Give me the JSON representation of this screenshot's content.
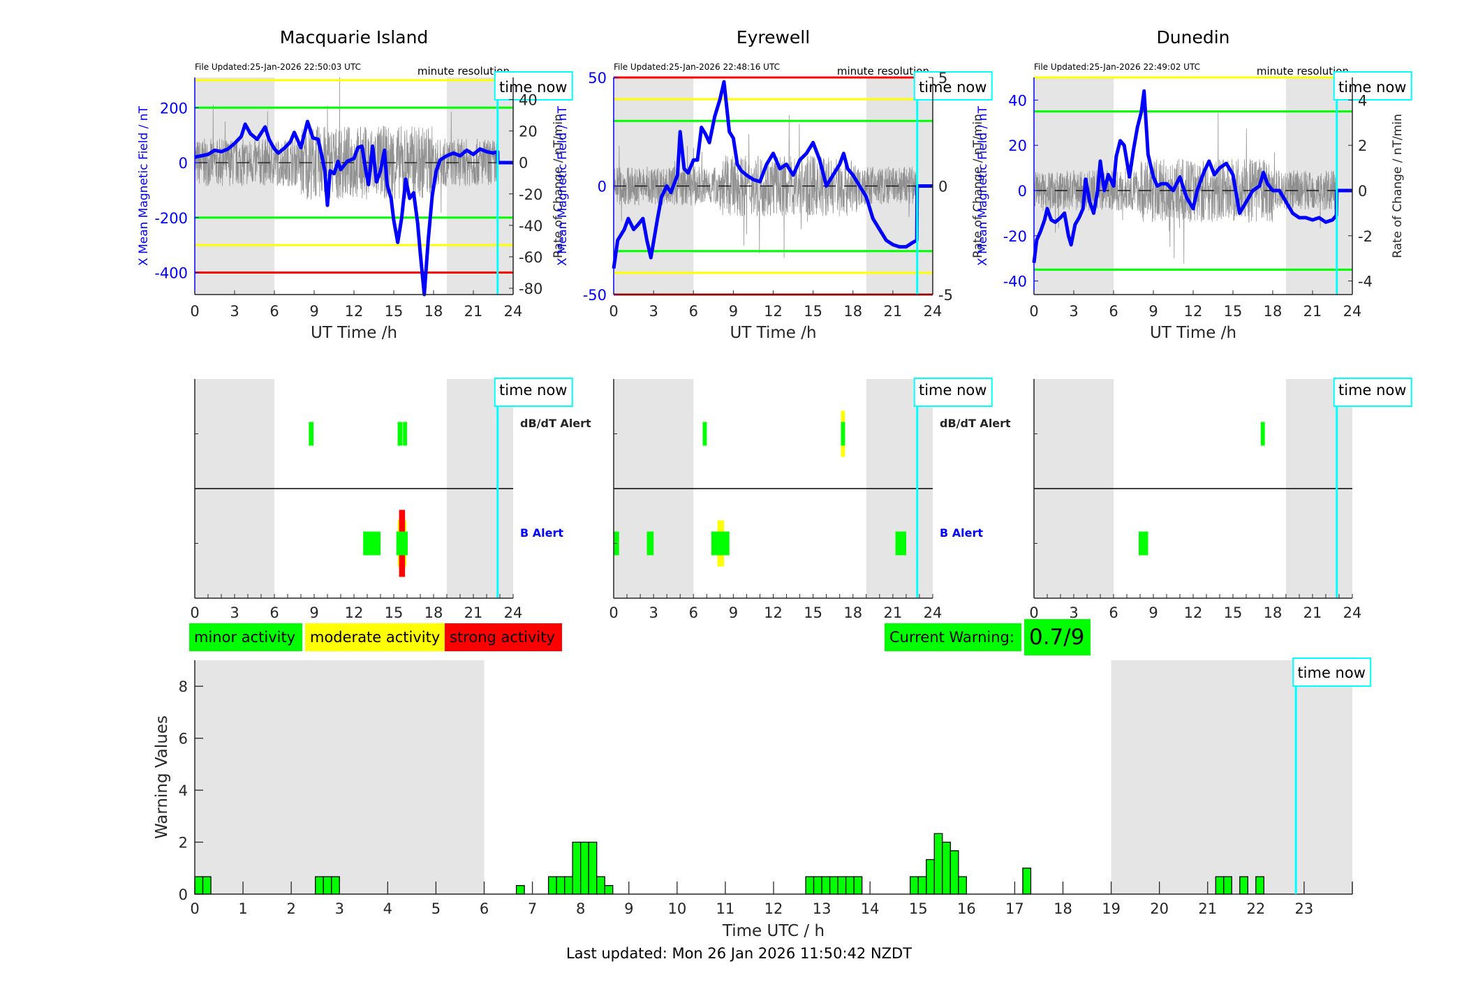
{
  "colors": {
    "field_line": "#0000ff",
    "roc_line": "#808080",
    "green": "#00ff00",
    "yellow": "#ffff00",
    "red": "#ff0000",
    "night_shade": "#e5e5e5",
    "time_now": "#00ffff"
  },
  "time_now_label": "time now",
  "time_now_hour": 22.83,
  "night_shading_hours": [
    [
      0,
      6
    ],
    [
      19,
      24
    ]
  ],
  "stations": [
    {
      "name": "Macquarie Island",
      "file_updated": "File Updated:25-Jan-2026 22:50:03 UTC",
      "resolution": "minute resolution",
      "left_axis_label": "X Mean Magnetic Field / nT",
      "right_axis_label": "Rate of Change / nT/min",
      "xlabel": "UT Time /h",
      "xticks": [
        "0",
        "3",
        "6",
        "9",
        "12",
        "15",
        "18",
        "21",
        "24"
      ],
      "left_ylim": [
        -480,
        310
      ],
      "left_yticks": [
        "200",
        "0",
        "-200",
        "-400"
      ],
      "left_ytick_values": [
        200,
        0,
        -200,
        -400
      ],
      "right_ylim": [
        -84,
        54
      ],
      "right_yticks": [
        "40",
        "20",
        "0",
        "-20",
        "-40",
        "-60",
        "-80"
      ],
      "right_ytick_values": [
        40,
        20,
        0,
        -20,
        -40,
        -60,
        -80
      ],
      "thresholds": [
        {
          "value": 300,
          "color": "yellow"
        },
        {
          "value": 200,
          "color": "green"
        },
        {
          "value": -200,
          "color": "green"
        },
        {
          "value": -300,
          "color": "yellow"
        },
        {
          "value": -400,
          "color": "red"
        }
      ],
      "field_series": [
        [
          0,
          20
        ],
        [
          0.5,
          25
        ],
        [
          1,
          30
        ],
        [
          1.5,
          45
        ],
        [
          2,
          40
        ],
        [
          2.5,
          50
        ],
        [
          3,
          70
        ],
        [
          3.5,
          95
        ],
        [
          3.8,
          140
        ],
        [
          4.2,
          105
        ],
        [
          4.7,
          85
        ],
        [
          5.3,
          130
        ],
        [
          5.6,
          85
        ],
        [
          6,
          50
        ],
        [
          6.3,
          35
        ],
        [
          6.8,
          55
        ],
        [
          7.2,
          75
        ],
        [
          7.5,
          110
        ],
        [
          8,
          55
        ],
        [
          8.5,
          150
        ],
        [
          8.9,
          90
        ],
        [
          9.3,
          85
        ],
        [
          9.6,
          20
        ],
        [
          9.8,
          -30
        ],
        [
          10,
          -155
        ],
        [
          10.2,
          -30
        ],
        [
          10.5,
          -40
        ],
        [
          10.8,
          5
        ],
        [
          11,
          -25
        ],
        [
          11.5,
          5
        ],
        [
          12,
          15
        ],
        [
          12.3,
          55
        ],
        [
          12.6,
          60
        ],
        [
          12.9,
          -30
        ],
        [
          13.1,
          -80
        ],
        [
          13.4,
          60
        ],
        [
          13.7,
          -70
        ],
        [
          14,
          -30
        ],
        [
          14.3,
          45
        ],
        [
          14.5,
          -80
        ],
        [
          14.8,
          -130
        ],
        [
          15,
          -210
        ],
        [
          15.3,
          -290
        ],
        [
          15.6,
          -200
        ],
        [
          15.9,
          -60
        ],
        [
          16.2,
          -130
        ],
        [
          16.5,
          -110
        ],
        [
          16.8,
          -220
        ],
        [
          17,
          -330
        ],
        [
          17.3,
          -480
        ],
        [
          17.6,
          -280
        ],
        [
          17.9,
          -120
        ],
        [
          18.2,
          -30
        ],
        [
          18.5,
          10
        ],
        [
          19,
          25
        ],
        [
          19.5,
          35
        ],
        [
          20,
          25
        ],
        [
          20.5,
          45
        ],
        [
          21,
          30
        ],
        [
          21.5,
          50
        ],
        [
          22,
          40
        ],
        [
          22.5,
          35
        ],
        [
          22.83,
          40
        ],
        [
          22.84,
          0
        ],
        [
          24,
          0
        ]
      ],
      "dbdt_alerts": [
        {
          "start": 8.6,
          "end": 8.95,
          "level": "minor"
        },
        {
          "start": 15.3,
          "end": 15.65,
          "level": "minor"
        },
        {
          "start": 15.7,
          "end": 16.0,
          "level": "minor"
        }
      ],
      "b_alerts": [
        {
          "start": 12.7,
          "end": 14.0,
          "level": "minor"
        },
        {
          "start": 15.2,
          "end": 16.05,
          "level": "minor"
        },
        {
          "start": 15.3,
          "end": 15.95,
          "level": "moderate"
        },
        {
          "start": 15.4,
          "end": 15.85,
          "level": "strong"
        }
      ]
    },
    {
      "name": "Eyrewell",
      "file_updated": "File Updated:25-Jan-2026 22:48:16 UTC",
      "resolution": "minute resolution",
      "left_axis_label": "X Mean Magnetic Field / nT",
      "right_axis_label": "Rate of Change / nT/min",
      "xlabel": "UT Time /h",
      "xticks": [
        "0",
        "3",
        "6",
        "9",
        "12",
        "15",
        "18",
        "21",
        "24"
      ],
      "left_ylim": [
        -50,
        50
      ],
      "left_yticks": [
        "50",
        "0",
        "-50"
      ],
      "left_ytick_values": [
        50,
        0,
        -50
      ],
      "right_ylim": [
        -5,
        5
      ],
      "right_yticks": [
        "5",
        "0",
        "-5"
      ],
      "right_ytick_values": [
        5,
        0,
        -5
      ],
      "thresholds": [
        {
          "value": 50,
          "color": "red"
        },
        {
          "value": 40,
          "color": "yellow"
        },
        {
          "value": 30,
          "color": "green"
        },
        {
          "value": -30,
          "color": "green"
        },
        {
          "value": -40,
          "color": "yellow"
        },
        {
          "value": -50,
          "color": "red"
        }
      ],
      "field_series": [
        [
          0,
          -38
        ],
        [
          0.3,
          -25
        ],
        [
          0.8,
          -20
        ],
        [
          1.1,
          -15
        ],
        [
          1.5,
          -20
        ],
        [
          1.8,
          -18
        ],
        [
          2.2,
          -15
        ],
        [
          2.5,
          -25
        ],
        [
          2.8,
          -33
        ],
        [
          3.3,
          -15
        ],
        [
          3.6,
          -5
        ],
        [
          4,
          0
        ],
        [
          4.3,
          -3
        ],
        [
          4.8,
          5
        ],
        [
          5,
          25
        ],
        [
          5.3,
          8
        ],
        [
          5.6,
          6
        ],
        [
          6,
          12
        ],
        [
          6.3,
          12
        ],
        [
          6.6,
          27
        ],
        [
          6.9,
          24
        ],
        [
          7.2,
          20
        ],
        [
          7.6,
          32
        ],
        [
          8,
          40
        ],
        [
          8.3,
          48
        ],
        [
          8.7,
          25
        ],
        [
          9,
          22
        ],
        [
          9.3,
          10
        ],
        [
          9.6,
          7
        ],
        [
          10,
          5
        ],
        [
          10.5,
          3
        ],
        [
          11,
          2
        ],
        [
          11.5,
          10
        ],
        [
          12,
          15
        ],
        [
          12.5,
          8
        ],
        [
          13,
          10
        ],
        [
          13.5,
          5
        ],
        [
          14,
          12
        ],
        [
          14.5,
          15
        ],
        [
          15,
          20
        ],
        [
          15.5,
          12
        ],
        [
          16,
          0
        ],
        [
          16.5,
          5
        ],
        [
          17,
          10
        ],
        [
          17.3,
          15
        ],
        [
          17.6,
          8
        ],
        [
          18,
          5
        ],
        [
          18.5,
          0
        ],
        [
          19,
          -5
        ],
        [
          19.5,
          -15
        ],
        [
          20,
          -20
        ],
        [
          20.5,
          -25
        ],
        [
          21,
          -27
        ],
        [
          21.5,
          -28
        ],
        [
          22,
          -28
        ],
        [
          22.5,
          -26
        ],
        [
          22.8,
          -25
        ],
        [
          22.83,
          0
        ],
        [
          24,
          0
        ]
      ],
      "dbdt_alerts": [
        {
          "start": 6.7,
          "end": 7.0,
          "level": "minor"
        },
        {
          "start": 17.1,
          "end": 17.4,
          "level": "moderate"
        },
        {
          "start": 17.1,
          "end": 17.4,
          "level": "minor"
        }
      ],
      "b_alerts": [
        {
          "start": 0.0,
          "end": 0.4,
          "level": "minor"
        },
        {
          "start": 2.5,
          "end": 3.0,
          "level": "minor"
        },
        {
          "start": 7.8,
          "end": 8.3,
          "level": "moderate"
        },
        {
          "start": 7.35,
          "end": 8.7,
          "level": "minor"
        },
        {
          "start": 21.2,
          "end": 22.0,
          "level": "minor"
        }
      ]
    },
    {
      "name": "Dunedin",
      "file_updated": "File Updated:25-Jan-2026 22:49:02 UTC",
      "resolution": "minute resolution",
      "left_axis_label": "X Mean Magnetic Field / nT",
      "right_axis_label": "Rate of Change / nT/min",
      "xlabel": "UT Time /h",
      "xticks": [
        "0",
        "3",
        "6",
        "9",
        "12",
        "15",
        "18",
        "21",
        "24"
      ],
      "left_ylim": [
        -46,
        50
      ],
      "left_yticks": [
        "40",
        "20",
        "0",
        "-20",
        "-40"
      ],
      "left_ytick_values": [
        40,
        20,
        0,
        -20,
        -40
      ],
      "right_ylim": [
        -4.6,
        5
      ],
      "right_yticks": [
        "4",
        "2",
        "0",
        "-2",
        "-4"
      ],
      "right_ytick_values": [
        4,
        2,
        0,
        -2,
        -4
      ],
      "thresholds": [
        {
          "value": 50,
          "color": "yellow"
        },
        {
          "value": 35,
          "color": "green"
        },
        {
          "value": -35,
          "color": "green"
        }
      ],
      "field_series": [
        [
          0,
          -32
        ],
        [
          0.2,
          -22
        ],
        [
          0.5,
          -18
        ],
        [
          0.8,
          -13
        ],
        [
          1,
          -8
        ],
        [
          1.3,
          -13
        ],
        [
          1.6,
          -14
        ],
        [
          2,
          -12
        ],
        [
          2.3,
          -10
        ],
        [
          2.6,
          -20
        ],
        [
          2.8,
          -24
        ],
        [
          3.1,
          -15
        ],
        [
          3.4,
          -12
        ],
        [
          3.7,
          -8
        ],
        [
          3.9,
          5
        ],
        [
          4.2,
          -5
        ],
        [
          4.5,
          -10
        ],
        [
          4.8,
          0
        ],
        [
          5,
          13
        ],
        [
          5.3,
          0
        ],
        [
          5.6,
          7
        ],
        [
          6,
          2
        ],
        [
          6.2,
          15
        ],
        [
          6.5,
          22
        ],
        [
          6.8,
          20
        ],
        [
          7.2,
          6
        ],
        [
          7.5,
          18
        ],
        [
          7.8,
          28
        ],
        [
          8.1,
          35
        ],
        [
          8.3,
          44
        ],
        [
          8.6,
          16
        ],
        [
          9,
          6
        ],
        [
          9.3,
          2
        ],
        [
          9.6,
          3
        ],
        [
          10,
          3
        ],
        [
          10.5,
          0
        ],
        [
          11,
          6
        ],
        [
          11.5,
          -3
        ],
        [
          12,
          -8
        ],
        [
          12.3,
          0
        ],
        [
          12.8,
          8
        ],
        [
          13.2,
          13
        ],
        [
          13.6,
          7
        ],
        [
          14,
          10
        ],
        [
          14.5,
          12
        ],
        [
          15,
          7
        ],
        [
          15.5,
          -10
        ],
        [
          16,
          -5
        ],
        [
          16.5,
          0
        ],
        [
          17,
          2
        ],
        [
          17.3,
          8
        ],
        [
          17.6,
          3
        ],
        [
          18,
          0
        ],
        [
          18.5,
          0
        ],
        [
          19,
          -5
        ],
        [
          19.5,
          -10
        ],
        [
          20,
          -12
        ],
        [
          20.5,
          -12
        ],
        [
          21,
          -13
        ],
        [
          21.5,
          -12
        ],
        [
          22,
          -14
        ],
        [
          22.5,
          -13
        ],
        [
          22.8,
          -11
        ],
        [
          22.83,
          0
        ],
        [
          24,
          0
        ]
      ],
      "dbdt_alerts": [
        {
          "start": 17.1,
          "end": 17.4,
          "level": "minor"
        }
      ],
      "b_alerts": [
        {
          "start": 7.9,
          "end": 8.6,
          "level": "minor"
        }
      ]
    }
  ],
  "alert_rows": {
    "dbdt_label": "dB/dT Alert",
    "b_label": "B Alert"
  },
  "legend": {
    "minor": "minor activity",
    "moderate": "moderate activity",
    "strong": "strong activity"
  },
  "current_warning": {
    "label": "Current Warning:",
    "value": "0.7/9"
  },
  "chart_data": {
    "type": "bar",
    "title": "",
    "xlabel": "Time UTC / h",
    "ylabel": "Warning Values",
    "xlim": [
      0,
      24
    ],
    "ylim": [
      0,
      9
    ],
    "xticks": [
      "0",
      "1",
      "2",
      "3",
      "4",
      "5",
      "6",
      "7",
      "8",
      "9",
      "10",
      "11",
      "12",
      "13",
      "14",
      "15",
      "16",
      "17",
      "18",
      "19",
      "20",
      "21",
      "22",
      "23"
    ],
    "yticks": [
      "0",
      "2",
      "4",
      "6",
      "8"
    ],
    "bin_width_hours": 0.1667,
    "bars": [
      {
        "start": 0.0,
        "value": 0.67
      },
      {
        "start": 0.167,
        "value": 0.67
      },
      {
        "start": 2.5,
        "value": 0.67
      },
      {
        "start": 2.667,
        "value": 0.67
      },
      {
        "start": 2.833,
        "value": 0.67
      },
      {
        "start": 6.667,
        "value": 0.33
      },
      {
        "start": 7.333,
        "value": 0.67
      },
      {
        "start": 7.5,
        "value": 0.67
      },
      {
        "start": 7.667,
        "value": 0.67
      },
      {
        "start": 7.833,
        "value": 2.0
      },
      {
        "start": 8.0,
        "value": 2.0
      },
      {
        "start": 8.167,
        "value": 2.0
      },
      {
        "start": 8.333,
        "value": 0.67
      },
      {
        "start": 8.5,
        "value": 0.33
      },
      {
        "start": 12.667,
        "value": 0.67
      },
      {
        "start": 12.833,
        "value": 0.67
      },
      {
        "start": 13.0,
        "value": 0.67
      },
      {
        "start": 13.167,
        "value": 0.67
      },
      {
        "start": 13.333,
        "value": 0.67
      },
      {
        "start": 13.5,
        "value": 0.67
      },
      {
        "start": 13.667,
        "value": 0.67
      },
      {
        "start": 14.833,
        "value": 0.67
      },
      {
        "start": 15.0,
        "value": 0.67
      },
      {
        "start": 15.167,
        "value": 1.33
      },
      {
        "start": 15.333,
        "value": 2.33
      },
      {
        "start": 15.5,
        "value": 2.0
      },
      {
        "start": 15.667,
        "value": 1.67
      },
      {
        "start": 15.833,
        "value": 0.67
      },
      {
        "start": 17.167,
        "value": 1.0
      },
      {
        "start": 21.167,
        "value": 0.67
      },
      {
        "start": 21.333,
        "value": 0.67
      },
      {
        "start": 21.667,
        "value": 0.67
      },
      {
        "start": 22.0,
        "value": 0.67
      }
    ],
    "bar_color": "#00ff00",
    "grid": false
  },
  "footer": {
    "last_updated": "Last updated: Mon 26 Jan 2026 11:50:42 NZDT"
  }
}
